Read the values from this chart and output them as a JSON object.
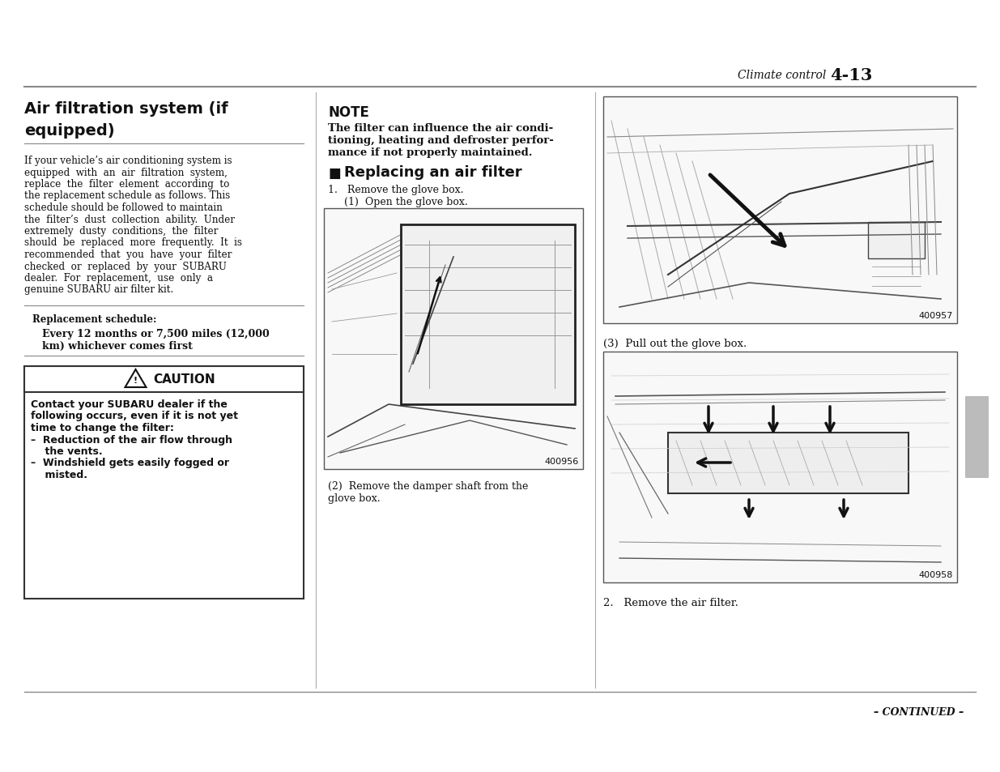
{
  "bg_color": "#ffffff",
  "page_header_italic": "Climate control",
  "page_number": "4-13",
  "title": "Air filtration system (if\nequipped)",
  "body_text_lines": [
    "If your vehicle’s air conditioning system is",
    "equipped  with  an  air  filtration  system,",
    "replace  the  filter  element  according  to",
    "the replacement schedule as follows. This",
    "schedule should be followed to maintain",
    "the  filter’s  dust  collection  ability.  Under",
    "extremely  dusty  conditions,  the  filter",
    "should  be  replaced  more  frequently.  It  is",
    "recommended  that  you  have  your  filter",
    "checked  or  replaced  by  your  SUBARU",
    "dealer.  For  replacement,  use  only  a",
    "genuine SUBARU air filter kit."
  ],
  "replacement_label": "Replacement schedule:",
  "replacement_value1": "Every 12 months or 7,500 miles (12,000",
  "replacement_value2": "km) whichever comes first",
  "caution_title": "CAUTION",
  "caution_line1": "Contact your SUBARU dealer if the",
  "caution_line2": "following occurs, even if it is not yet",
  "caution_line3": "time to change the filter:",
  "caution_bullet1a": "–  Reduction of the air flow through",
  "caution_bullet1b": "    the vents.",
  "caution_bullet2a": "–  Windshield gets easily fogged or",
  "caution_bullet2b": "    misted.",
  "note_title": "NOTE",
  "note_line1": "The filter can influence the air condi-",
  "note_line2": "tioning, heating and defroster perfor-",
  "note_line3": "mance if not properly maintained.",
  "section_title": "Replacing an air filter",
  "step1a": "1.   Remove the glove box.",
  "step1b": "     (1)  Open the glove box.",
  "fig1_code": "400956",
  "fig1_caption1": "(2)  Remove the damper shaft from the",
  "fig1_caption2": "glove box.",
  "fig2_code": "400957",
  "step3_text": "(3)  Pull out the glove box.",
  "fig3_code": "400958",
  "step2_text": "2.   Remove the air filter.",
  "continued": "– CONTINUED –"
}
